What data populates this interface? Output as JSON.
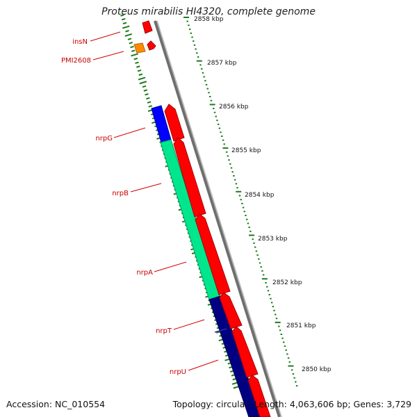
{
  "title": "Proteus mirabilis HI4320, complete genome",
  "footer": {
    "accession": "Accession: NC_010554",
    "topology": "Topology: circular; Length: 4,063,606 bp; Genes: 3,729"
  },
  "ruler": {
    "unit": "kbp",
    "ticks": [
      "2858 kbp",
      "2857 kbp",
      "2856 kbp",
      "2855 kbp",
      "2854 kbp",
      "2853 kbp",
      "2852 kbp",
      "2851 kbp",
      "2850 kbp"
    ]
  },
  "genes": [
    {
      "name": "insN",
      "color": "#ff0000"
    },
    {
      "name": "PMI2608",
      "color": "#ff8c00"
    },
    {
      "name": "nrpG",
      "color": "#0000ff"
    },
    {
      "name": "nrpB",
      "color": "#00e68c"
    },
    {
      "name": "nrpA",
      "color": "#00e68c"
    },
    {
      "name": "nrpT",
      "color": "#000080"
    },
    {
      "name": "nrpU",
      "color": "#000080"
    }
  ],
  "colors": {
    "cds": "#ff0000",
    "backbone": "#7a7a7a",
    "gc_skew": "#1e7a1e",
    "label": "#c80000"
  }
}
